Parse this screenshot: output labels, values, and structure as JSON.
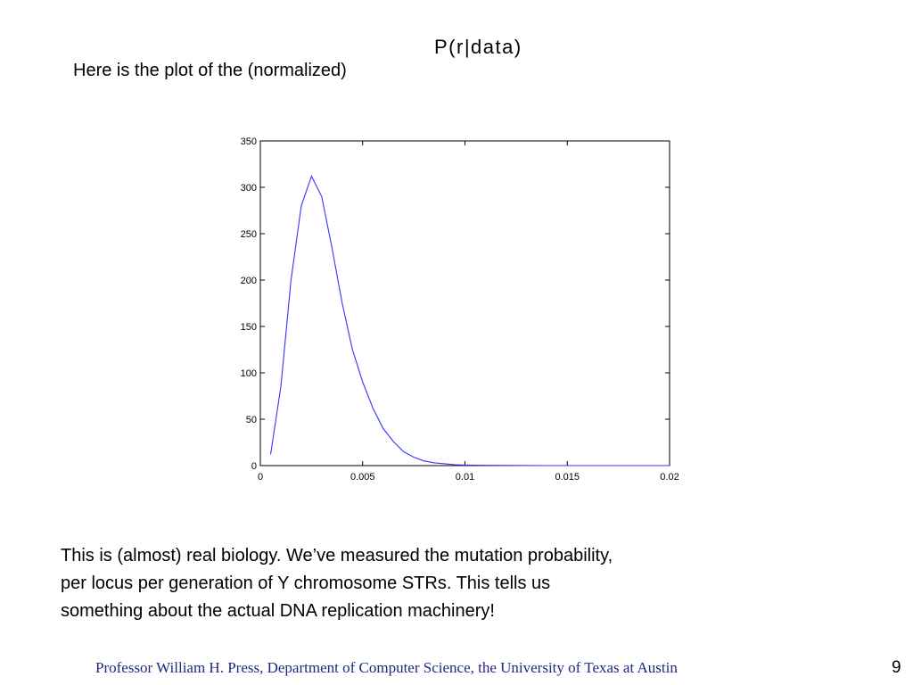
{
  "slide": {
    "intro_text": "Here is the plot of the (normalized)",
    "formula_text": "P(r|data)",
    "body_lines": [
      "This is (almost) real biology.  We’ve measured the mutation probability,",
      "per locus per generation of Y chromosome STRs.  This tells us",
      "something about the actual DNA replication machinery!"
    ],
    "footer": "Professor William H. Press, Department of Computer Science, the University of Texas at Austin",
    "page_number": "9",
    "footer_color": "#1f2a80"
  },
  "chart_data": {
    "type": "line",
    "title": "",
    "xlabel": "",
    "ylabel": "",
    "xlim": [
      0,
      0.02
    ],
    "ylim": [
      0,
      350
    ],
    "x_ticks": [
      0,
      0.005,
      0.01,
      0.015,
      0.02
    ],
    "x_tick_labels": [
      "0",
      "0.005",
      "0.01",
      "0.015",
      "0.02"
    ],
    "y_ticks": [
      0,
      50,
      100,
      150,
      200,
      250,
      300,
      350
    ],
    "y_tick_labels": [
      "0",
      "50",
      "100",
      "150",
      "200",
      "250",
      "300",
      "350"
    ],
    "grid": false,
    "series": [
      {
        "color": "#3333ff",
        "x": [
          0.0005,
          0.001,
          0.0015,
          0.002,
          0.0025,
          0.003,
          0.0035,
          0.004,
          0.0045,
          0.005,
          0.0055,
          0.006,
          0.0065,
          0.007,
          0.0075,
          0.008,
          0.0085,
          0.009,
          0.0095,
          0.01,
          0.011,
          0.012,
          0.013,
          0.014,
          0.015,
          0.016,
          0.017,
          0.018,
          0.019,
          0.02
        ],
        "y": [
          12,
          85,
          200,
          280,
          312,
          290,
          235,
          175,
          125,
          90,
          62,
          40,
          26,
          15,
          9,
          5,
          3,
          2,
          1,
          0.6,
          0.3,
          0.15,
          0.08,
          0.04,
          0.02,
          0.01,
          0,
          0,
          0,
          0
        ]
      }
    ]
  }
}
